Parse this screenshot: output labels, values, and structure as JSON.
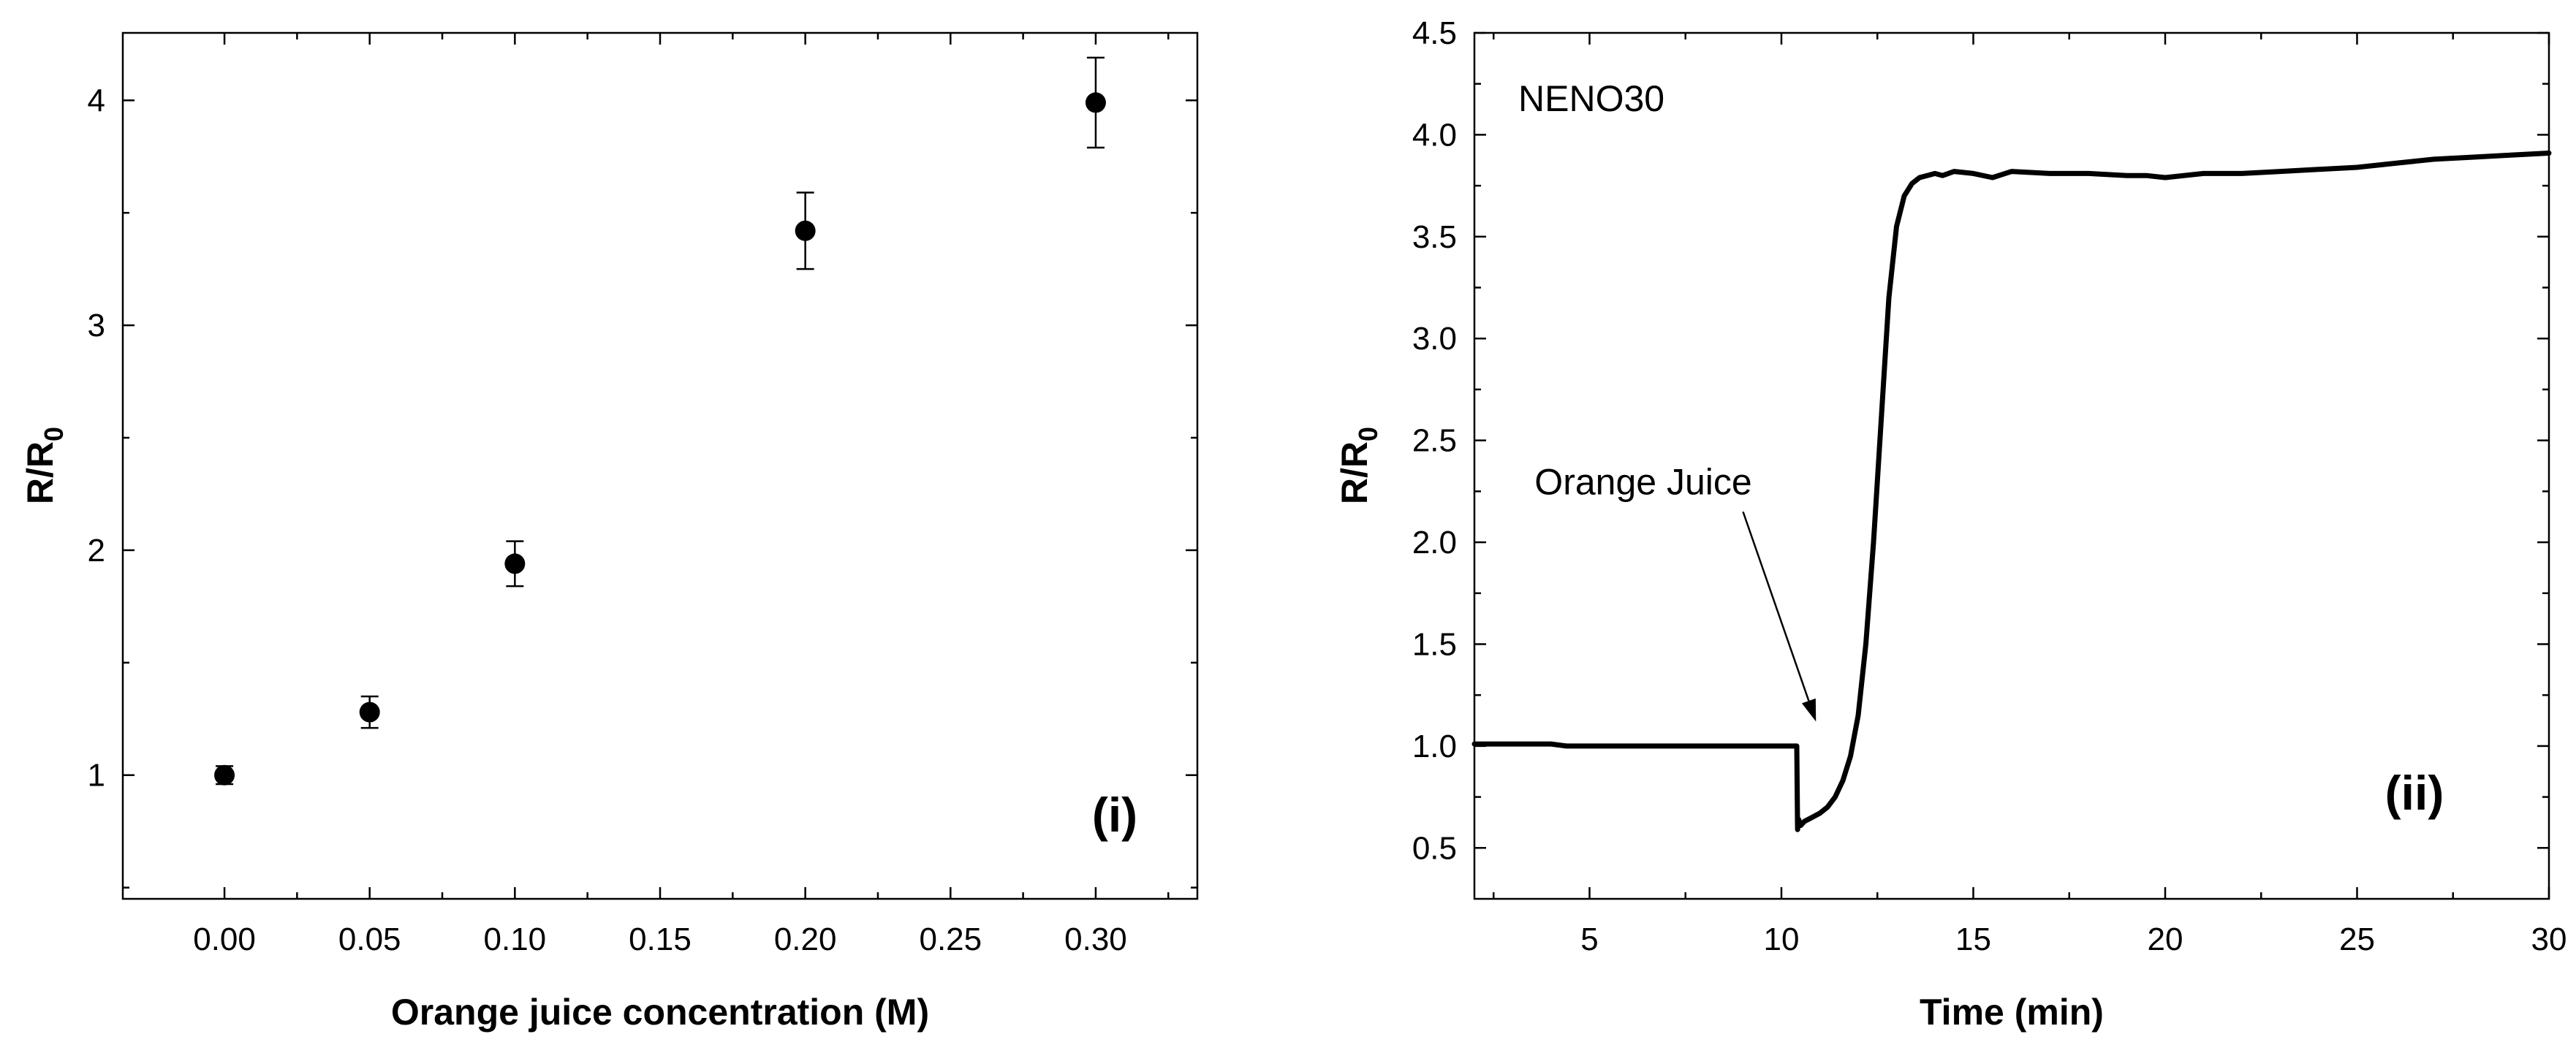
{
  "chart_data": [
    {
      "type": "scatter",
      "panel_label": "(i)",
      "xlabel": "Orange juice concentration (M)",
      "ylabel_main": "R/R",
      "ylabel_sub": "0",
      "xlim": [
        -0.035,
        0.335
      ],
      "ylim": [
        0.45,
        4.3
      ],
      "x_ticks": [
        0.0,
        0.05,
        0.1,
        0.15,
        0.2,
        0.25,
        0.3
      ],
      "x_tick_labels": [
        "0.00",
        "0.05",
        "0.10",
        "0.15",
        "0.20",
        "0.25",
        "0.30"
      ],
      "y_ticks": [
        1,
        2,
        3,
        4
      ],
      "y_tick_labels": [
        "1",
        "2",
        "3",
        "4"
      ],
      "x": [
        0.0,
        0.05,
        0.1,
        0.2,
        0.3
      ],
      "y": [
        1.0,
        1.28,
        1.94,
        3.42,
        3.99
      ],
      "yerr": [
        0.04,
        0.07,
        0.1,
        0.17,
        0.2
      ]
    },
    {
      "type": "line",
      "panel_label": "(ii)",
      "series_label": "NENO30",
      "annotation": "Orange Juice",
      "xlabel": "Time (min)",
      "ylabel_main": "R/R",
      "ylabel_sub": "0",
      "xlim": [
        2,
        30
      ],
      "ylim": [
        0.25,
        4.5
      ],
      "x_ticks": [
        5,
        10,
        15,
        20,
        25,
        30
      ],
      "x_tick_labels": [
        "5",
        "10",
        "15",
        "20",
        "25",
        "30"
      ],
      "y_ticks": [
        0.5,
        1.0,
        1.5,
        2.0,
        2.5,
        3.0,
        3.5,
        4.0,
        4.5
      ],
      "y_tick_labels": [
        "0.5",
        "1.0",
        "1.5",
        "2.0",
        "2.5",
        "3.0",
        "3.5",
        "4.0",
        "4.5"
      ],
      "annotation_text_at": [
        6.4,
        2.3
      ],
      "annotation_arrow_from": [
        9.0,
        2.15
      ],
      "annotation_arrow_to": [
        10.9,
        1.12
      ],
      "x": [
        2.0,
        4.0,
        4.4,
        6.0,
        8.0,
        10.0,
        10.4,
        10.42,
        10.45,
        10.5,
        10.6,
        10.8,
        11.0,
        11.2,
        11.4,
        11.6,
        11.8,
        12.0,
        12.2,
        12.4,
        12.6,
        12.8,
        13.0,
        13.2,
        13.4,
        13.6,
        13.8,
        14.0,
        14.2,
        14.5,
        15.0,
        15.5,
        16.0,
        17.0,
        18.0,
        19.0,
        19.5,
        20.0,
        21.0,
        22.0,
        23.0,
        24.0,
        25.0,
        26.0,
        27.0,
        28.0,
        29.0,
        30.0
      ],
      "y": [
        1.01,
        1.01,
        1.0,
        1.0,
        1.0,
        1.0,
        1.0,
        0.59,
        0.64,
        0.61,
        0.63,
        0.65,
        0.67,
        0.7,
        0.75,
        0.83,
        0.95,
        1.15,
        1.5,
        2.0,
        2.6,
        3.2,
        3.55,
        3.7,
        3.76,
        3.79,
        3.8,
        3.81,
        3.8,
        3.82,
        3.81,
        3.79,
        3.82,
        3.81,
        3.81,
        3.8,
        3.8,
        3.79,
        3.81,
        3.81,
        3.82,
        3.83,
        3.84,
        3.86,
        3.88,
        3.89,
        3.9,
        3.91
      ]
    }
  ]
}
